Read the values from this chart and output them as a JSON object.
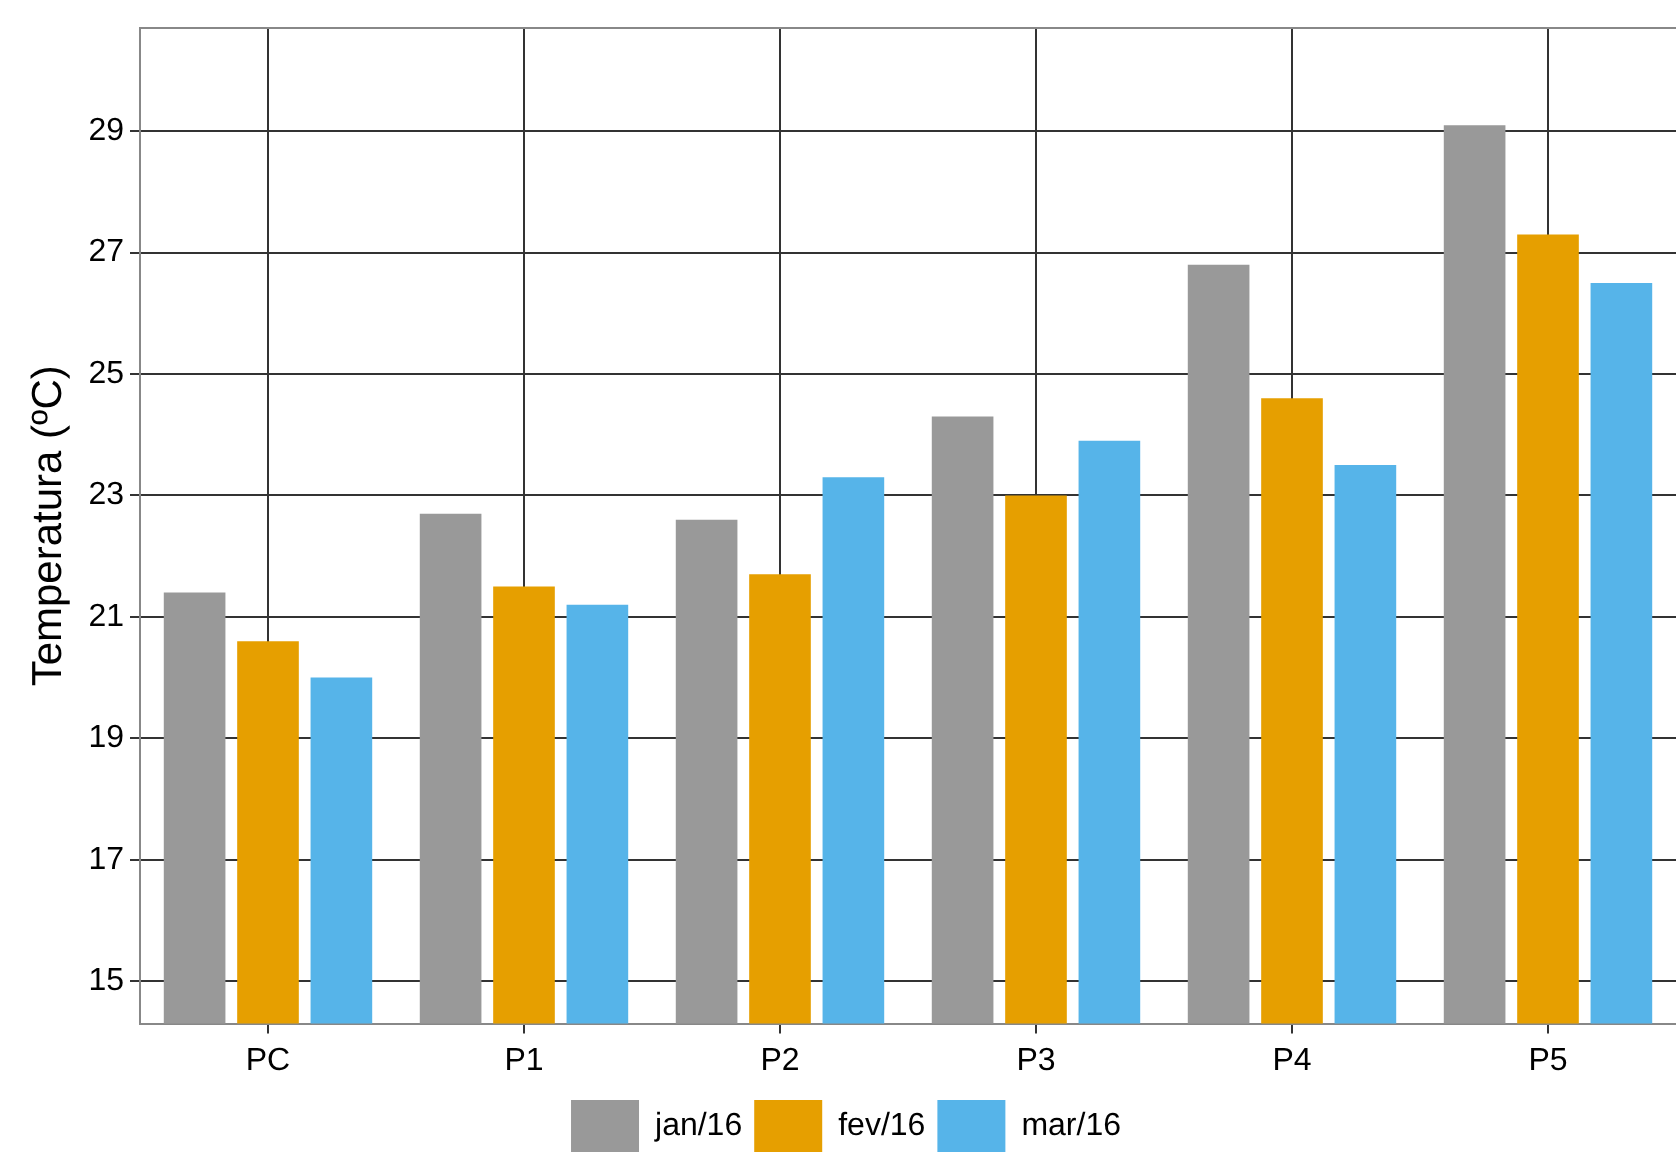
{
  "chart_data": {
    "type": "bar",
    "ylabel": "Temperatura (ºC)",
    "categories": [
      "PC",
      "P1",
      "P2",
      "P3",
      "P4",
      "P5"
    ],
    "series": [
      {
        "name": "jan/16",
        "color": "#999999",
        "values": [
          21.4,
          22.7,
          22.6,
          24.3,
          26.8,
          29.1
        ]
      },
      {
        "name": "fev/16",
        "color": "#e69f00",
        "values": [
          20.6,
          21.5,
          21.7,
          23.0,
          24.6,
          27.3
        ]
      },
      {
        "name": "mar/16",
        "color": "#56b4e9",
        "values": [
          20.0,
          21.2,
          23.3,
          23.9,
          23.5,
          26.5
        ]
      }
    ],
    "ylim": [
      14.3,
      30.7
    ],
    "yticks": [
      15,
      17,
      19,
      21,
      23,
      25,
      27,
      29
    ],
    "grid": true,
    "legend": "bottom"
  }
}
